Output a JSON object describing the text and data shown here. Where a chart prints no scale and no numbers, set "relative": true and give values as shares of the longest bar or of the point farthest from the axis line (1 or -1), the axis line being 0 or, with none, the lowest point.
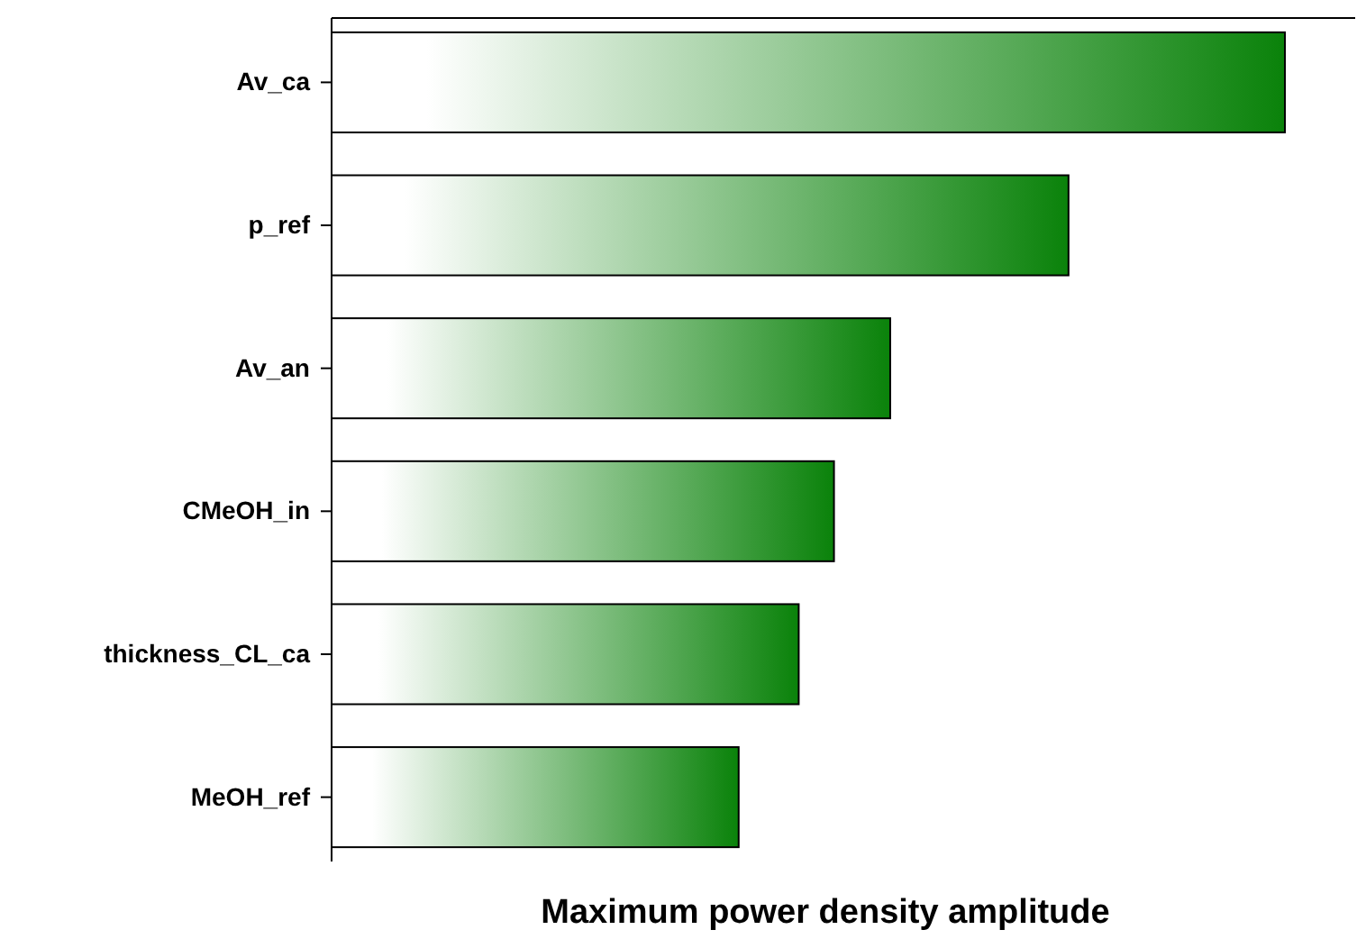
{
  "chart_data": {
    "type": "bar",
    "orientation": "horizontal",
    "relative": true,
    "xlabel": "Maximum power density amplitude",
    "categories": [
      "Av_ca",
      "p_ref",
      "Av_an",
      "CMeOH_in",
      "thickness_CL_ca",
      "MeOH_ref"
    ],
    "values": [
      1,
      0.773,
      0.586,
      0.527,
      0.49,
      0.427
    ],
    "color": "#0a820a"
  }
}
